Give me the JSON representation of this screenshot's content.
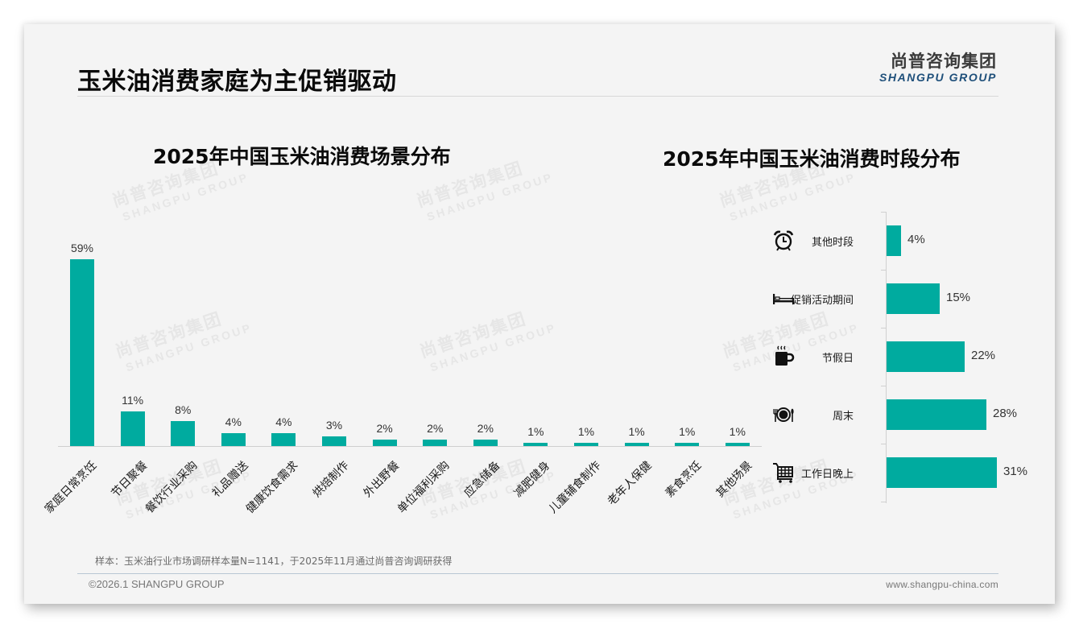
{
  "page": {
    "title": "玉米油消费家庭为主促销驱动",
    "logo": {
      "cn": "尚普咨询集团",
      "en": "SHANGPU GROUP"
    },
    "watermark": {
      "cn": "尚普咨询集团",
      "en": "SHANGPU GROUP"
    },
    "note": "样本：玉米油行业市场调研样本量N=1141，于2025年11月通过尚普咨询调研获得",
    "copyright": "©2026.1 SHANGPU GROUP",
    "website": "www.shangpu-china.com",
    "colors": {
      "bar": "#00ab9f",
      "background": "#f4f4f4",
      "logo_en": "#1e4f7a"
    }
  },
  "chart_data": [
    {
      "type": "bar",
      "title": "2025年中国玉米油消费场景分布",
      "xlabel": "",
      "ylabel": "",
      "categories": [
        "家庭日常烹饪",
        "节日聚餐",
        "餐饮行业采购",
        "礼品赠送",
        "健康饮食需求",
        "烘焙制作",
        "外出野餐",
        "单位福利采购",
        "应急储备",
        "减肥健身",
        "儿童辅食制作",
        "老年人保健",
        "素食烹饪",
        "其他场景"
      ],
      "values": [
        59,
        11,
        8,
        4,
        4,
        3,
        2,
        2,
        2,
        1,
        1,
        1,
        1,
        1
      ],
      "labels": [
        "59%",
        "11%",
        "8%",
        "4%",
        "4%",
        "3%",
        "2%",
        "2%",
        "2%",
        "1%",
        "1%",
        "1%",
        "1%",
        "1%"
      ],
      "unit": "%",
      "grid": false,
      "legend": "none",
      "ylim": [
        0,
        60
      ]
    },
    {
      "type": "bar",
      "orientation": "horizontal",
      "title": "2025年中国玉米油消费时段分布",
      "xlabel": "",
      "ylabel": "",
      "categories": [
        "其他时段",
        "促销活动期间",
        "节假日",
        "周末",
        "工作日晚上"
      ],
      "values": [
        4,
        15,
        22,
        28,
        31
      ],
      "labels": [
        "4%",
        "15%",
        "22%",
        "28%",
        "31%"
      ],
      "icons": [
        "alarm-clock-icon",
        "bed-icon",
        "hot-coffee-mug-icon",
        "plate-cutlery-icon",
        "shopping-cart-icon"
      ],
      "unit": "%",
      "grid": false,
      "legend": "none",
      "xlim": [
        0,
        35
      ]
    }
  ]
}
